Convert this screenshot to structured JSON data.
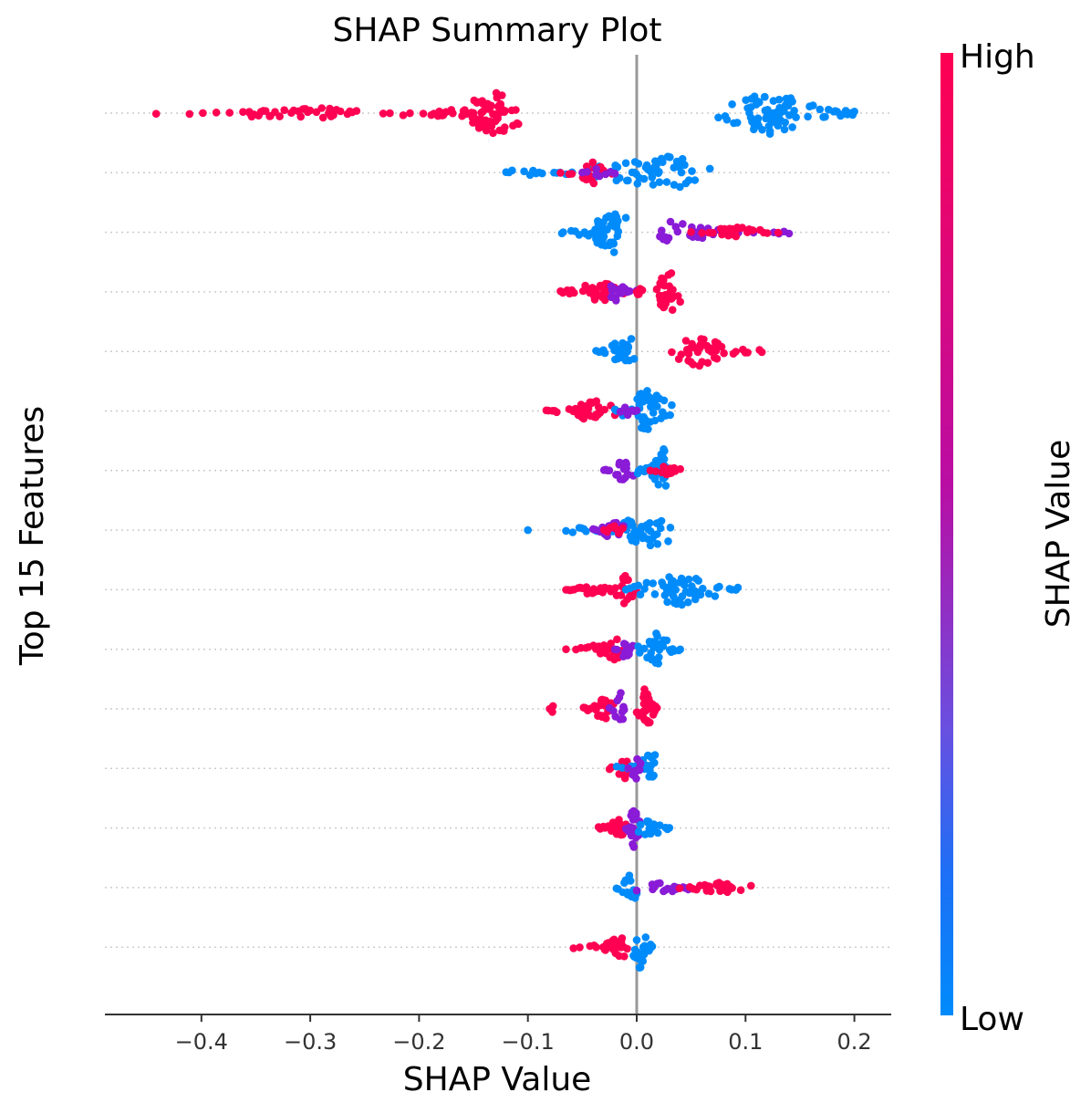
{
  "chart_data": {
    "type": "scatter",
    "subtype": "shap-beeswarm",
    "title": "SHAP Summary Plot",
    "xlabel": "SHAP Value",
    "ylabel": "Top 15 Features",
    "xlim": [
      -0.49,
      0.23
    ],
    "xticks": [
      -0.4,
      -0.3,
      -0.2,
      -0.1,
      0.0,
      0.1,
      0.2
    ],
    "xtick_labels": [
      "−0.4",
      "−0.3",
      "−0.2",
      "−0.1",
      "0.0",
      "0.1",
      "0.2"
    ],
    "zero_line": 0.0,
    "colorbar": {
      "label": "SHAP Value",
      "high_label": "High",
      "low_label": "Low",
      "high_color": "#ff0052",
      "mid_color": "#8a1bd6",
      "low_color": "#008bfb"
    },
    "feature_rows": [
      {
        "groups": [
          {
            "lo": -0.46,
            "hi": -0.19,
            "peak": -0.3,
            "width": 1,
            "color": "high",
            "n": 45
          },
          {
            "lo": -0.19,
            "hi": -0.105,
            "peak": -0.13,
            "width": 4,
            "color": "high",
            "n": 70
          },
          {
            "lo": 0.075,
            "hi": 0.2,
            "peak": 0.12,
            "width": 4,
            "color": "low",
            "n": 80
          }
        ]
      },
      {
        "groups": [
          {
            "lo": -0.12,
            "hi": 0.07,
            "peak": 0.03,
            "width": 3,
            "color": "low",
            "n": 70
          },
          {
            "lo": -0.07,
            "hi": -0.02,
            "peak": -0.04,
            "width": 2,
            "color": "high",
            "n": 20
          },
          {
            "lo": -0.05,
            "hi": -0.02,
            "peak": -0.035,
            "width": 1,
            "color": "mid",
            "n": 8
          }
        ]
      },
      {
        "groups": [
          {
            "lo": -0.07,
            "hi": -0.01,
            "peak": -0.02,
            "width": 4,
            "color": "low",
            "n": 50
          },
          {
            "lo": 0.005,
            "hi": 0.14,
            "peak": 0.03,
            "width": 2,
            "color": "mid",
            "n": 30
          },
          {
            "lo": 0.05,
            "hi": 0.13,
            "peak": 0.09,
            "width": 1,
            "color": "high",
            "n": 25
          }
        ]
      },
      {
        "groups": [
          {
            "lo": -0.07,
            "hi": -0.01,
            "peak": -0.035,
            "width": 2,
            "color": "high",
            "n": 30
          },
          {
            "lo": -0.03,
            "hi": 0.0,
            "peak": -0.02,
            "width": 2,
            "color": "mid",
            "n": 15
          },
          {
            "lo": 0.0,
            "hi": 0.04,
            "peak": 0.03,
            "width": 4,
            "color": "high",
            "n": 40
          }
        ]
      },
      {
        "groups": [
          {
            "lo": -0.04,
            "hi": -0.001,
            "peak": -0.01,
            "width": 3,
            "color": "low",
            "n": 30
          },
          {
            "lo": 0.03,
            "hi": 0.115,
            "peak": 0.055,
            "width": 3,
            "color": "high",
            "n": 40
          }
        ]
      },
      {
        "groups": [
          {
            "lo": -0.085,
            "hi": -0.02,
            "peak": -0.04,
            "width": 2,
            "color": "high",
            "n": 35
          },
          {
            "lo": -0.02,
            "hi": 0.035,
            "peak": 0.01,
            "width": 4,
            "color": "low",
            "n": 40
          },
          {
            "lo": -0.015,
            "hi": 0.0,
            "peak": -0.008,
            "width": 1,
            "color": "mid",
            "n": 8
          }
        ]
      },
      {
        "groups": [
          {
            "lo": -0.03,
            "hi": 0.0,
            "peak": -0.012,
            "width": 2,
            "color": "mid",
            "n": 20
          },
          {
            "lo": 0.0,
            "hi": 0.03,
            "peak": 0.025,
            "width": 4,
            "color": "low",
            "n": 35
          },
          {
            "lo": 0.01,
            "hi": 0.045,
            "peak": 0.03,
            "width": 1,
            "color": "high",
            "n": 15
          }
        ]
      },
      {
        "groups": [
          {
            "lo": -0.1,
            "hi": -0.1,
            "peak": -0.1,
            "width": 0,
            "color": "low",
            "n": 1
          },
          {
            "lo": -0.065,
            "hi": 0.035,
            "peak": 0.015,
            "width": 3,
            "color": "low",
            "n": 50
          },
          {
            "lo": -0.04,
            "hi": -0.01,
            "peak": -0.02,
            "width": 2,
            "color": "mid",
            "n": 15
          },
          {
            "lo": -0.03,
            "hi": -0.01,
            "peak": -0.02,
            "width": 1,
            "color": "high",
            "n": 8
          }
        ]
      },
      {
        "groups": [
          {
            "lo": -0.065,
            "hi": -0.02,
            "peak": -0.04,
            "width": 1,
            "color": "high",
            "n": 25
          },
          {
            "lo": -0.025,
            "hi": 0.0,
            "peak": -0.01,
            "width": 3,
            "color": "high",
            "n": 20
          },
          {
            "lo": -0.01,
            "hi": 0.093,
            "peak": 0.04,
            "width": 3,
            "color": "low",
            "n": 55
          }
        ]
      },
      {
        "groups": [
          {
            "lo": -0.065,
            "hi": -0.01,
            "peak": -0.02,
            "width": 2,
            "color": "high",
            "n": 25
          },
          {
            "lo": -0.02,
            "hi": 0.0,
            "peak": -0.01,
            "width": 2,
            "color": "mid",
            "n": 12
          },
          {
            "lo": 0.0,
            "hi": 0.04,
            "peak": 0.018,
            "width": 3,
            "color": "low",
            "n": 30
          }
        ]
      },
      {
        "groups": [
          {
            "lo": -0.08,
            "hi": -0.075,
            "peak": -0.078,
            "width": 1,
            "color": "high",
            "n": 3
          },
          {
            "lo": -0.05,
            "hi": -0.02,
            "peak": -0.03,
            "width": 2,
            "color": "high",
            "n": 25
          },
          {
            "lo": -0.025,
            "hi": -0.005,
            "peak": -0.015,
            "width": 3,
            "color": "mid",
            "n": 12
          },
          {
            "lo": 0.0,
            "hi": 0.02,
            "peak": 0.008,
            "width": 4,
            "color": "high",
            "n": 30
          }
        ]
      },
      {
        "groups": [
          {
            "lo": -0.025,
            "hi": 0.0,
            "peak": -0.01,
            "width": 2,
            "color": "high",
            "n": 15
          },
          {
            "lo": -0.02,
            "hi": 0.02,
            "peak": 0.015,
            "width": 3,
            "color": "low",
            "n": 25
          },
          {
            "lo": -0.01,
            "hi": 0.01,
            "peak": 0.0,
            "width": 2,
            "color": "mid",
            "n": 10
          }
        ]
      },
      {
        "groups": [
          {
            "lo": -0.035,
            "hi": -0.01,
            "peak": -0.015,
            "width": 2,
            "color": "high",
            "n": 18
          },
          {
            "lo": -0.01,
            "hi": 0.005,
            "peak": -0.003,
            "width": 4,
            "color": "mid",
            "n": 20
          },
          {
            "lo": 0.0,
            "hi": 0.03,
            "peak": 0.012,
            "width": 2,
            "color": "low",
            "n": 18
          }
        ]
      },
      {
        "groups": [
          {
            "lo": -0.02,
            "hi": 0.0,
            "peak": -0.005,
            "width": 3,
            "color": "low",
            "n": 15
          },
          {
            "lo": 0.0,
            "hi": 0.09,
            "peak": 0.02,
            "width": 1,
            "color": "mid",
            "n": 20
          },
          {
            "lo": 0.03,
            "hi": 0.105,
            "peak": 0.08,
            "width": 1,
            "color": "high",
            "n": 25
          }
        ]
      },
      {
        "groups": [
          {
            "lo": -0.06,
            "hi": -0.005,
            "peak": -0.015,
            "width": 2,
            "color": "high",
            "n": 30
          },
          {
            "lo": -0.003,
            "hi": 0.015,
            "peak": 0.003,
            "width": 4,
            "color": "low",
            "n": 25
          }
        ]
      }
    ]
  }
}
